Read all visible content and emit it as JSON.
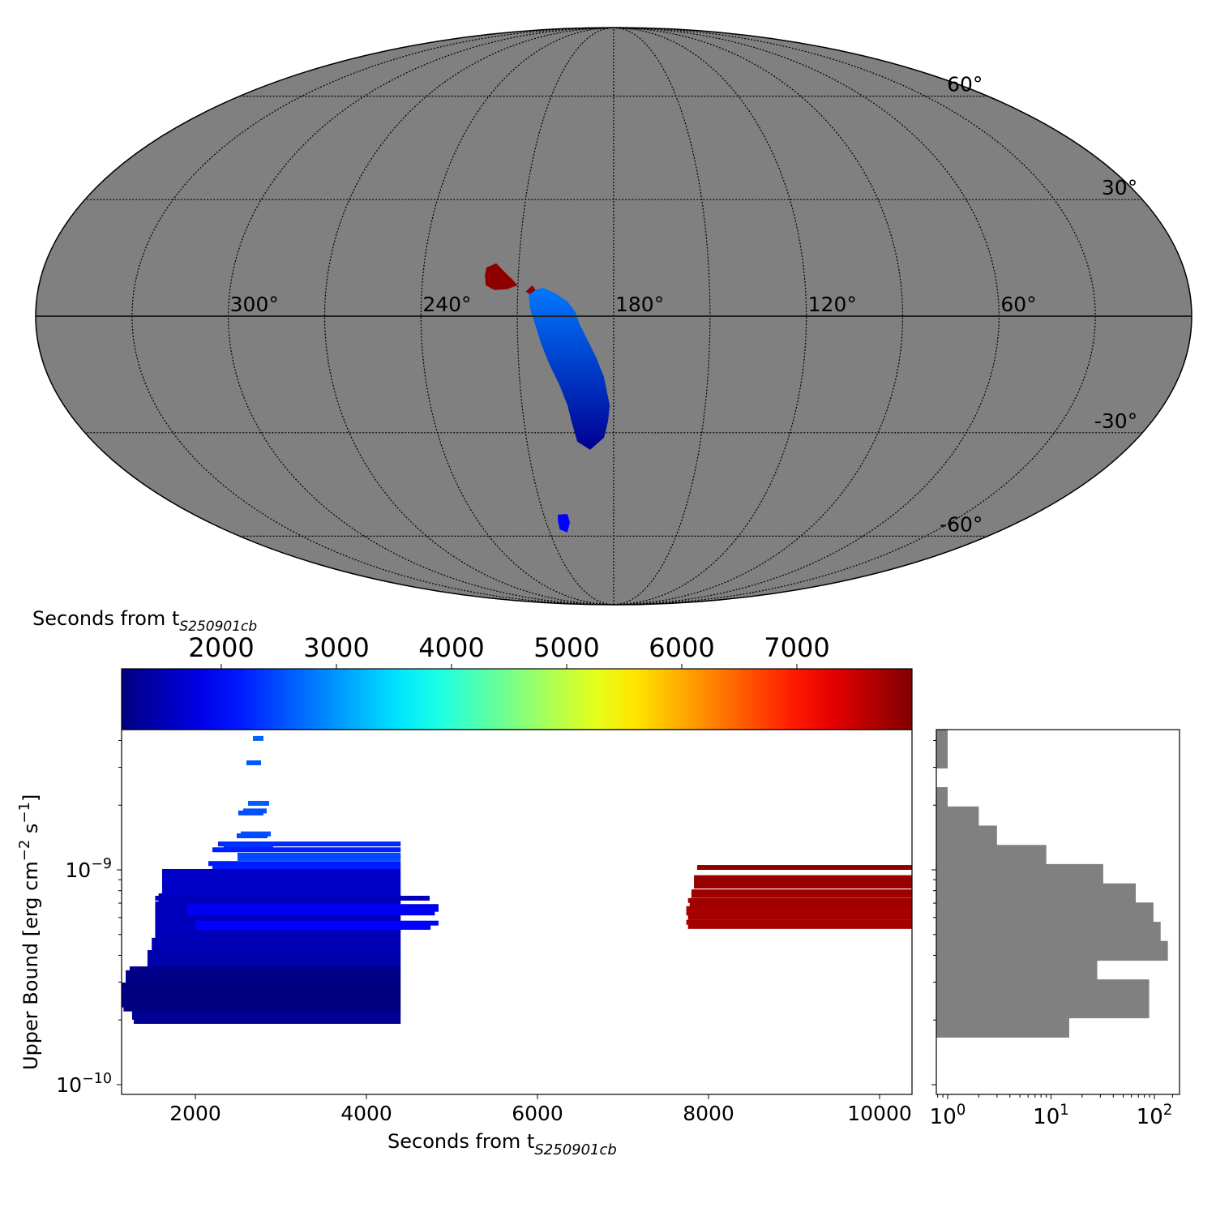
{
  "chart_data": [
    {
      "type": "map",
      "projection": "mollweide",
      "center_ra_deg": 180,
      "background_color": "#808080",
      "ra_tick_labels": [
        {
          "ra": 300,
          "text": "300°"
        },
        {
          "ra": 240,
          "text": "240°"
        },
        {
          "ra": 180,
          "text": "180°"
        },
        {
          "ra": 120,
          "text": "120°"
        },
        {
          "ra": 60,
          "text": "60°"
        }
      ],
      "dec_tick_labels": [
        {
          "dec": 60,
          "text": "60°"
        },
        {
          "dec": 30,
          "text": "30°"
        },
        {
          "dec": -30,
          "text": "-30°"
        },
        {
          "dec": -60,
          "text": "-60°"
        }
      ],
      "regions": [
        {
          "name": "main-blue-region",
          "time_top": 2800,
          "time_bottom": 1250,
          "vertices_ra_dec": [
            [
              206.6,
              6.15
            ],
            [
              202.1,
              7.18
            ],
            [
              198.2,
              5.74
            ],
            [
              194.4,
              3.7
            ],
            [
              191.9,
              1.0
            ],
            [
              190.6,
              -2.05
            ],
            [
              188.1,
              -6.15
            ],
            [
              185.6,
              -10.27
            ],
            [
              183.1,
              -15.45
            ],
            [
              181.3,
              -22.8
            ],
            [
              181.9,
              -27.0
            ],
            [
              183.3,
              -31.3
            ],
            [
              188.3,
              -34.6
            ],
            [
              192.6,
              -32.4
            ],
            [
              194.1,
              -27.0
            ],
            [
              195.1,
              -22.8
            ],
            [
              197.4,
              -17.5
            ],
            [
              200.2,
              -12.4
            ],
            [
              202.6,
              -7.2
            ],
            [
              204.5,
              -2.05
            ],
            [
              206.1,
              2.05
            ]
          ]
        },
        {
          "name": "red-region",
          "time_top": 7900,
          "time_bottom": 7900,
          "vertices_ra_dec": [
            [
              220.2,
              12.33
            ],
            [
              217.2,
              13.4
            ],
            [
              214.5,
              11.3
            ],
            [
              211.7,
              9.2
            ],
            [
              210.1,
              7.8
            ],
            [
              213.4,
              6.8
            ],
            [
              217.3,
              6.6
            ],
            [
              220.1,
              7.8
            ],
            [
              220.5,
              10.3
            ]
          ]
        },
        {
          "name": "small-red-fragment",
          "time_top": 7900,
          "time_bottom": 7900,
          "vertices_ra_dec": [
            [
              207.5,
              6.2
            ],
            [
              205.5,
              7.8
            ],
            [
              204.4,
              6.6
            ],
            [
              206.2,
              5.6
            ]
          ]
        },
        {
          "name": "southern-blue-region",
          "time_top": 2000,
          "time_bottom": 2000,
          "vertices_ra_dec": [
            [
              204.0,
              -53.2
            ],
            [
              199.8,
              -53.0
            ],
            [
              199.5,
              -55.6
            ],
            [
              201.8,
              -58.8
            ],
            [
              204.9,
              -57.8
            ],
            [
              204.6,
              -55.0
            ]
          ]
        }
      ]
    },
    {
      "type": "segments",
      "xlabel_main": "Seconds from t",
      "xlabel_sub": "S250901cb",
      "ylabel": "Upper Bound [erg cm",
      "ylabel_exp1": "−2",
      "ylabel_mid": " s",
      "ylabel_exp2": "−1",
      "ylabel_end": "]",
      "xlim": [
        1137,
        10380
      ],
      "ylim_log10": [
        -10.045,
        -8.347
      ],
      "x_ticks": [
        {
          "v": 2000,
          "t": "2000"
        },
        {
          "v": 4000,
          "t": "4000"
        },
        {
          "v": 6000,
          "t": "6000"
        },
        {
          "v": 8000,
          "t": "8000"
        },
        {
          "v": 10000,
          "t": "10000"
        }
      ],
      "y_ticks": [
        {
          "exp": -9,
          "base": "10",
          "sup": "−9"
        },
        {
          "exp": -10,
          "base": "10",
          "sup": "−10"
        }
      ],
      "colormap": "jet",
      "color_by": "segment start time",
      "segments_start_end_ub_e-9": [
        [
          2673,
          2796,
          4.09
        ],
        [
          2597,
          2768,
          3.15
        ],
        [
          2616,
          2862,
          2.04
        ],
        [
          2559,
          2834,
          1.88
        ],
        [
          2502,
          2796,
          1.84
        ],
        [
          2531,
          2882,
          1.47
        ],
        [
          2483,
          2844,
          1.44
        ],
        [
          2265,
          4400,
          1.32
        ],
        [
          2330,
          2910,
          1.3
        ],
        [
          2199,
          4400,
          1.24
        ],
        [
          2493,
          4400,
          1.17
        ],
        [
          2493,
          4400,
          1.13
        ],
        [
          2152,
          4400,
          1.07
        ],
        [
          2199,
          4400,
          1.03
        ],
        [
          1611,
          4400,
          0.983
        ],
        [
          1611,
          4400,
          0.941
        ],
        [
          1611,
          4400,
          0.901
        ],
        [
          1611,
          4400,
          0.863
        ],
        [
          1611,
          4400,
          0.826
        ],
        [
          1611,
          4400,
          0.791
        ],
        [
          1570,
          4400,
          0.757
        ],
        [
          1570,
          4400,
          0.725
        ],
        [
          1530,
          4400,
          0.694
        ],
        [
          1530,
          4400,
          0.665
        ],
        [
          1530,
          4400,
          0.636
        ],
        [
          1530,
          4400,
          0.609
        ],
        [
          1530,
          4400,
          0.583
        ],
        [
          1530,
          4400,
          0.559
        ],
        [
          1530,
          4400,
          0.535
        ],
        [
          1530,
          4400,
          0.512
        ],
        [
          1530,
          4400,
          0.49
        ],
        [
          1490,
          4400,
          0.47
        ],
        [
          1490,
          4400,
          0.45
        ],
        [
          1490,
          4400,
          0.43
        ],
        [
          1440,
          4400,
          0.412
        ],
        [
          1440,
          4400,
          0.395
        ],
        [
          1440,
          4400,
          0.378
        ],
        [
          1440,
          4400,
          0.362
        ],
        [
          1232,
          4400,
          0.346
        ],
        [
          1185,
          4400,
          0.332
        ],
        [
          1185,
          4400,
          0.318
        ],
        [
          1185,
          4400,
          0.304
        ],
        [
          1137,
          4400,
          0.291
        ],
        [
          1137,
          4400,
          0.279
        ],
        [
          1137,
          4400,
          0.267
        ],
        [
          1137,
          4400,
          0.256
        ],
        [
          1137,
          4400,
          0.245
        ],
        [
          1137,
          4400,
          0.235
        ],
        [
          1160,
          4400,
          0.225
        ],
        [
          1260,
          4400,
          0.215
        ],
        [
          1260,
          4400,
          0.206
        ],
        [
          1280,
          4400,
          0.197
        ],
        [
          1530,
          4739,
          0.738
        ],
        [
          1900,
          4843,
          0.675
        ],
        [
          1900,
          4843,
          0.655
        ],
        [
          1900,
          4800,
          0.63
        ],
        [
          2000,
          4843,
          0.565
        ],
        [
          2000,
          4750,
          0.54
        ],
        [
          7867,
          10500,
          1.026
        ],
        [
          7830,
          10500,
          0.92
        ],
        [
          7830,
          10500,
          0.88
        ],
        [
          7830,
          10500,
          0.84
        ],
        [
          7800,
          10500,
          0.79
        ],
        [
          7800,
          10500,
          0.76
        ],
        [
          7760,
          10500,
          0.72
        ],
        [
          7780,
          10500,
          0.69
        ],
        [
          7740,
          10500,
          0.66
        ],
        [
          7740,
          10500,
          0.63
        ],
        [
          7760,
          10500,
          0.6
        ],
        [
          7740,
          10500,
          0.57
        ],
        [
          7760,
          10500,
          0.545
        ]
      ]
    },
    {
      "type": "colorbar",
      "label_main": "Seconds from t",
      "label_sub": "S250901cb",
      "range": [
        1134,
        8000
      ],
      "ticks": [
        {
          "v": 2000,
          "t": "2000"
        },
        {
          "v": 3000,
          "t": "3000"
        },
        {
          "v": 4000,
          "t": "4000"
        },
        {
          "v": 5000,
          "t": "5000"
        },
        {
          "v": 6000,
          "t": "6000"
        },
        {
          "v": 7000,
          "t": "7000"
        }
      ]
    },
    {
      "type": "bar",
      "orientation": "horizontal",
      "xscale": "log",
      "xlim": [
        0.78,
        175
      ],
      "bar_color": "#808080",
      "bin_edges_log10": [
        -8.347,
        -8.436,
        -8.526,
        -8.615,
        -8.705,
        -8.794,
        -8.884,
        -8.973,
        -9.063,
        -9.152,
        -9.242,
        -9.331,
        -9.421,
        -9.51,
        -9.6,
        -9.689,
        -9.779
      ],
      "counts": [
        1,
        1,
        0,
        1,
        2,
        3,
        9,
        32,
        66,
        98,
        115,
        135,
        28,
        89,
        89,
        15
      ],
      "x_ticks": [
        {
          "exp": 0,
          "base": "10",
          "sup": "0"
        },
        {
          "exp": 1,
          "base": "10",
          "sup": "1"
        },
        {
          "exp": 2,
          "base": "10",
          "sup": "2"
        }
      ]
    }
  ]
}
